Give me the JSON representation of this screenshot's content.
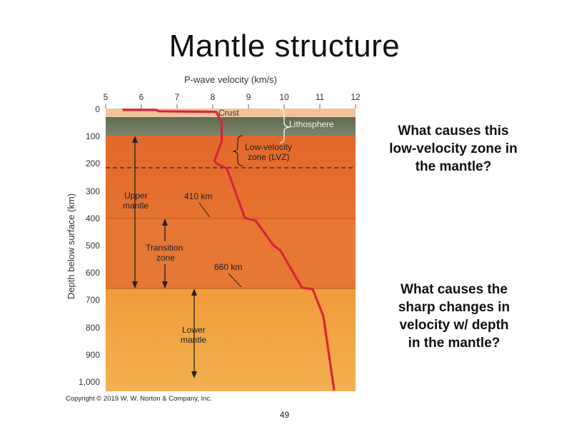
{
  "slide": {
    "title": "Mantle structure",
    "page_number": "49",
    "copyright": "Copyright © 2019 W. W. Norton & Company, Inc."
  },
  "questions": {
    "q1": [
      "What causes this",
      "low-velocity zone in",
      "the mantle?"
    ],
    "q2": [
      "What causes the",
      "sharp changes in",
      "velocity w/ depth",
      "in the mantle?"
    ]
  },
  "figure": {
    "x_axis_title": "P-wave velocity (km/s)",
    "x_ticks": [
      "5",
      "6",
      "7",
      "8",
      "9",
      "10",
      "11",
      "12"
    ],
    "y_axis_title": "Depth below surface (km)",
    "y_ticks": [
      "0",
      "100",
      "200",
      "300",
      "400",
      "500",
      "600",
      "700",
      "800",
      "900",
      "1,000"
    ],
    "labels": {
      "crust": "Crust",
      "lithosphere": "Lithosphere",
      "lvz_line1": "Low-velocity",
      "lvz_line2": "zone (LVZ)",
      "upper_mantle_line1": "Upper",
      "upper_mantle_line2": "mantle",
      "transition_line1": "Transition",
      "transition_line2": "zone",
      "lower_mantle_line1": "Lower",
      "lower_mantle_line2": "mantle",
      "boundary_410": "410 km",
      "boundary_660": "660 km"
    },
    "colors": {
      "crust": "#f0c39a",
      "lithosphere": "#6e7a60",
      "upper_mantle": "#e06a2e",
      "lower_mantle": "#f0a03c",
      "velocity_curve": "#d8253a"
    },
    "velocity_profile_km_s_vs_depth_km": [
      [
        5.5,
        0
      ],
      [
        5.5,
        5
      ],
      [
        6.4,
        5
      ],
      [
        6.5,
        10
      ],
      [
        8.1,
        12
      ],
      [
        8.25,
        50
      ],
      [
        8.25,
        120
      ],
      [
        8.05,
        190
      ],
      [
        8.1,
        200
      ],
      [
        8.4,
        220
      ],
      [
        8.9,
        400
      ],
      [
        9.2,
        410
      ],
      [
        9.7,
        500
      ],
      [
        9.9,
        520
      ],
      [
        10.5,
        655
      ],
      [
        10.8,
        660
      ],
      [
        11.1,
        760
      ],
      [
        11.4,
        1030
      ]
    ],
    "lvz_dashed_line_depth_km": 220,
    "depth_max_km": 1030
  }
}
